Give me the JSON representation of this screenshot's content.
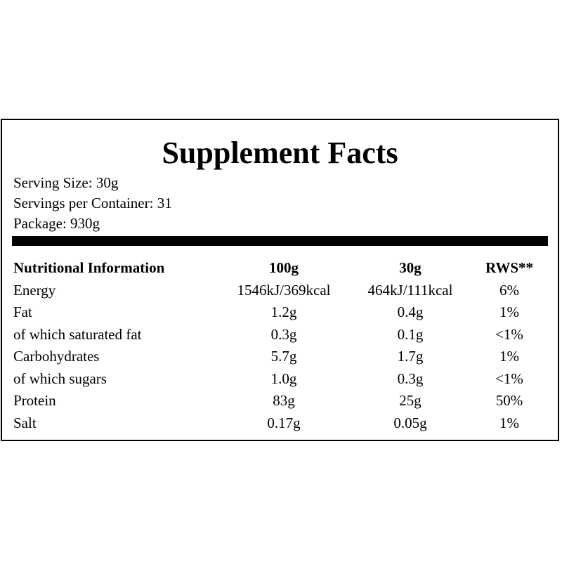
{
  "title": "Supplement Facts",
  "info": [
    "Serving Size: 30g",
    "Servings per Container: 31",
    "Package: 930g"
  ],
  "table": {
    "header": [
      "Nutritional Information",
      "100g",
      "30g",
      "RWS**"
    ],
    "rows": [
      [
        "Energy",
        "1546kJ/369kcal",
        "464kJ/111kcal",
        "6%"
      ],
      [
        "Fat",
        "1.2g",
        "0.4g",
        "1%"
      ],
      [
        "of which saturated fat",
        "0.3g",
        "0.1g",
        "<1%"
      ],
      [
        "Carbohydrates",
        "5.7g",
        "1.7g",
        "1%"
      ],
      [
        "of which sugars",
        "1.0g",
        "0.3g",
        "<1%"
      ],
      [
        "Protein",
        "83g",
        "25g",
        "50%"
      ],
      [
        "Salt",
        "0.17g",
        "0.05g",
        "1%"
      ]
    ]
  }
}
